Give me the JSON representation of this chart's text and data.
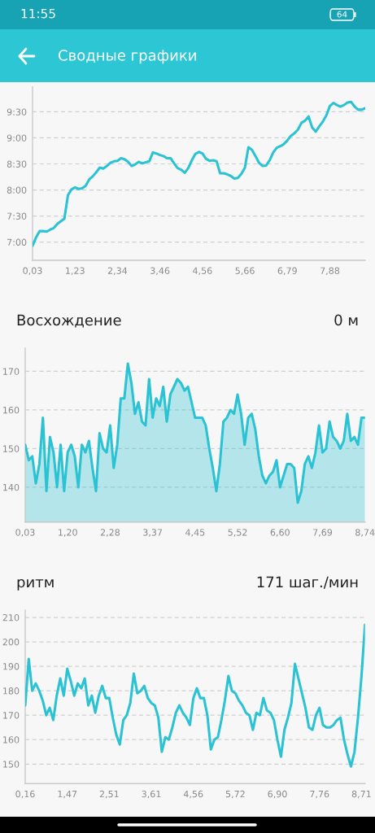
{
  "chart_data": [
    {
      "type": "line",
      "title": "Сводные графики",
      "annotations": [
        "11:55",
        "64"
      ],
      "categories": [
        "0,03",
        null,
        null,
        null,
        null,
        null,
        null,
        null,
        null,
        null,
        null,
        null,
        "1,23",
        null,
        null,
        null,
        null,
        null,
        null,
        null,
        null,
        null,
        null,
        null,
        "2,34",
        null,
        null,
        null,
        null,
        null,
        null,
        null,
        null,
        null,
        null,
        null,
        "3,46",
        null,
        null,
        null,
        null,
        null,
        null,
        null,
        null,
        null,
        null,
        null,
        "4,56",
        null,
        null,
        null,
        null,
        null,
        null,
        null,
        null,
        null,
        null,
        null,
        "5,66",
        null,
        null,
        null,
        null,
        null,
        null,
        null,
        null,
        null,
        null,
        null,
        "6,79",
        null,
        null,
        null,
        null,
        null,
        null,
        null,
        null,
        null,
        null,
        null,
        "7,88",
        null,
        null,
        null,
        null,
        null,
        null,
        null,
        null,
        null,
        null
      ],
      "values": [
        6.93,
        7.09,
        7.21,
        7.21,
        7.2,
        7.24,
        7.27,
        7.35,
        7.4,
        7.45,
        7.9,
        8.01,
        8.05,
        8.02,
        8.03,
        8.08,
        8.2,
        8.26,
        8.34,
        8.43,
        8.41,
        8.46,
        8.52,
        8.55,
        8.56,
        8.61,
        8.59,
        8.54,
        8.46,
        8.49,
        8.54,
        8.51,
        8.53,
        8.55,
        8.72,
        8.7,
        8.67,
        8.65,
        8.61,
        8.61,
        8.51,
        8.42,
        8.39,
        8.33,
        8.42,
        8.57,
        8.69,
        8.73,
        8.7,
        8.6,
        8.56,
        8.57,
        8.55,
        8.32,
        8.32,
        8.3,
        8.27,
        8.22,
        8.23,
        8.31,
        8.43,
        8.82,
        8.77,
        8.65,
        8.52,
        8.46,
        8.47,
        8.57,
        8.72,
        8.81,
        8.84,
        8.88,
        8.95,
        9.04,
        9.09,
        9.16,
        9.29,
        9.33,
        9.41,
        9.2,
        9.12,
        9.22,
        9.31,
        9.43,
        9.61,
        9.67,
        9.63,
        9.6,
        9.63,
        9.68,
        9.69,
        9.6,
        9.54,
        9.54,
        9.57
      ],
      "color": "#2bc3d3",
      "ylim": [
        6.65,
        9.98
      ],
      "yticks": [
        {
          "value": 7.0,
          "label": "7:00"
        },
        {
          "value": 7.5,
          "label": "7:30"
        },
        {
          "value": 8.0,
          "label": "8:00"
        },
        {
          "value": 8.5,
          "label": "8:30"
        },
        {
          "value": 9.0,
          "label": "9:00"
        },
        {
          "value": 9.5,
          "label": "9:30"
        }
      ],
      "grid": "y"
    },
    {
      "type": "area",
      "title": "Восхождение",
      "subtitle": "0 м",
      "categories": [
        "0,03",
        null,
        null,
        null,
        null,
        null,
        null,
        null,
        null,
        null,
        null,
        null,
        "1,20",
        null,
        null,
        null,
        null,
        null,
        null,
        null,
        null,
        null,
        null,
        null,
        "2,28",
        null,
        null,
        null,
        null,
        null,
        null,
        null,
        null,
        null,
        null,
        null,
        "3,37",
        null,
        null,
        null,
        null,
        null,
        null,
        null,
        null,
        null,
        null,
        null,
        "4,45",
        null,
        null,
        null,
        null,
        null,
        null,
        null,
        null,
        null,
        null,
        null,
        "5,52",
        null,
        null,
        null,
        null,
        null,
        null,
        null,
        null,
        null,
        null,
        null,
        "6,60",
        null,
        null,
        null,
        null,
        null,
        null,
        null,
        null,
        null,
        null,
        null,
        "7,69",
        null,
        null,
        null,
        null,
        null,
        null,
        null,
        null,
        null,
        null,
        null,
        "8,74"
      ],
      "values": [
        151,
        147,
        148,
        141,
        146,
        158,
        139,
        153,
        149,
        140,
        151,
        139,
        149,
        151,
        148,
        140,
        151,
        149,
        152,
        145,
        139,
        154,
        150,
        149,
        156,
        145,
        151,
        163,
        163,
        172,
        167,
        159,
        162,
        157,
        156,
        168,
        158,
        163,
        161,
        166,
        157,
        164,
        166,
        168,
        167,
        165,
        166,
        162,
        158,
        158,
        158,
        156,
        150,
        145,
        139,
        146,
        157,
        158,
        160,
        159,
        164,
        159,
        151,
        158,
        159,
        155,
        148,
        143,
        141,
        143,
        144,
        147,
        140,
        143,
        146,
        146,
        145,
        136,
        139,
        146,
        148,
        145,
        149,
        156,
        149,
        150,
        157,
        153,
        152,
        150,
        152,
        159,
        152,
        153,
        151,
        158,
        158
      ],
      "color": "#2bc3d3",
      "ylim": [
        131,
        176
      ],
      "yticks": [
        140,
        150,
        160,
        170
      ],
      "grid": "y"
    },
    {
      "type": "line",
      "title": "ритм",
      "subtitle": "171 шаг./мин",
      "categories": [
        "0,16",
        null,
        null,
        null,
        null,
        null,
        null,
        null,
        null,
        null,
        null,
        null,
        "1,47",
        null,
        null,
        null,
        null,
        null,
        null,
        null,
        null,
        null,
        null,
        null,
        "2,51",
        null,
        null,
        null,
        null,
        null,
        null,
        null,
        null,
        null,
        null,
        null,
        "3,61",
        null,
        null,
        null,
        null,
        null,
        null,
        null,
        null,
        null,
        null,
        null,
        "4,56",
        null,
        null,
        null,
        null,
        null,
        null,
        null,
        null,
        null,
        null,
        null,
        "5,72",
        null,
        null,
        null,
        null,
        null,
        null,
        null,
        null,
        null,
        null,
        null,
        "6,90",
        null,
        null,
        null,
        null,
        null,
        null,
        null,
        null,
        null,
        null,
        null,
        "7,76",
        null,
        null,
        null,
        null,
        null,
        null,
        null,
        null,
        null,
        null,
        null,
        "8,71",
        null
      ],
      "values": [
        174,
        193,
        180,
        183,
        180,
        176,
        170,
        173,
        168,
        178,
        185,
        178,
        189,
        184,
        178,
        183,
        181,
        185,
        174,
        178,
        171,
        178,
        182,
        177,
        177,
        169,
        162,
        158,
        168,
        170,
        175,
        187,
        179,
        180,
        182,
        177,
        175,
        174,
        169,
        155,
        161,
        160,
        165,
        171,
        174,
        171,
        169,
        166,
        177,
        181,
        177,
        177,
        170,
        156,
        160,
        161,
        168,
        176,
        186,
        180,
        179,
        176,
        174,
        171,
        170,
        164,
        171,
        170,
        177,
        172,
        171,
        168,
        160,
        153,
        164,
        169,
        175,
        191,
        185,
        179,
        173,
        165,
        164,
        170,
        173,
        166,
        165,
        165,
        166,
        168,
        169,
        160,
        154,
        149,
        155,
        169,
        186,
        207
      ],
      "color": "#2bc3d3",
      "ylim": [
        142,
        213
      ],
      "yticks": [
        150,
        160,
        170,
        180,
        190,
        200,
        210
      ],
      "grid": "y"
    }
  ]
}
